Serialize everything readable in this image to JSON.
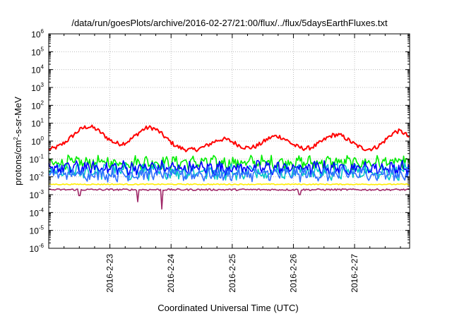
{
  "chart_data": {
    "type": "line",
    "title": "/data/run/goesPlots/archive/2016-02-27/21:00/flux/../flux/5daysEarthFluxes.txt",
    "xlabel": "Coordinated Universal Time (UTC)",
    "ylabel": {
      "base": "protons/cm",
      "sup": "2",
      "rest": "-s-sr-MeV"
    },
    "yscale": "log",
    "ylim_exp": [
      -6,
      6
    ],
    "y_tick_exponents": [
      "-6",
      "-5",
      "-4",
      "-3",
      "-2",
      "-1",
      "0",
      "1",
      "2",
      "3",
      "4",
      "5",
      "6"
    ],
    "y_tick_base": "10",
    "xlim": [
      0,
      5.9
    ],
    "x_ticks": [
      {
        "pos": 1,
        "label": "2016-2-23"
      },
      {
        "pos": 2,
        "label": "2016-2-24"
      },
      {
        "pos": 3,
        "label": "2016-2-25"
      },
      {
        "pos": 4,
        "label": "2016-2-26"
      },
      {
        "pos": 5,
        "label": "2016-2-27"
      }
    ],
    "grid": true,
    "series": [
      {
        "color": "#ff0000",
        "kind": "diurnal",
        "low_log": -0.55,
        "peaks": [
          {
            "center": 0.65,
            "width": 0.38,
            "height": 1.35
          },
          {
            "center": 1.65,
            "width": 0.35,
            "height": 1.3
          },
          {
            "center": 2.85,
            "width": 0.3,
            "height": 0.65
          },
          {
            "center": 3.72,
            "width": 0.3,
            "height": 0.82
          },
          {
            "center": 4.7,
            "width": 0.32,
            "height": 0.9
          },
          {
            "center": 5.72,
            "width": 0.28,
            "height": 1.1
          }
        ]
      },
      {
        "color": "#00ee00",
        "kind": "noisy",
        "mean_log": -1.2,
        "amp": 0.3
      },
      {
        "color": "#00c8c8",
        "kind": "noisy",
        "mean_log": -1.7,
        "amp": 0.35
      },
      {
        "color": "#0000ff",
        "kind": "noisy",
        "mean_log": -1.5,
        "amp": 0.3
      },
      {
        "color": "#3070ff",
        "kind": "noisy",
        "mean_log": -1.85,
        "amp": 0.3
      },
      {
        "color": "#ffee00",
        "kind": "flat",
        "mean_log": -2.42,
        "amp": 0.03
      },
      {
        "color": "#a02868",
        "kind": "spiky",
        "mean_log": -2.72,
        "amp": 0.05,
        "dips": [
          {
            "x": 1.45,
            "log": -3.4
          },
          {
            "x": 1.85,
            "log": -3.8
          },
          {
            "x": 0.5,
            "log": -3.05
          },
          {
            "x": 4.1,
            "log": -3.0
          }
        ]
      }
    ]
  }
}
